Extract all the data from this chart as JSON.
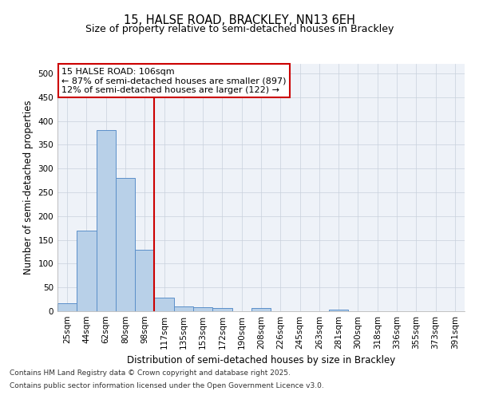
{
  "title_line1": "15, HALSE ROAD, BRACKLEY, NN13 6EH",
  "title_line2": "Size of property relative to semi-detached houses in Brackley",
  "xlabel": "Distribution of semi-detached houses by size in Brackley",
  "ylabel": "Number of semi-detached properties",
  "bins": [
    "25sqm",
    "44sqm",
    "62sqm",
    "80sqm",
    "98sqm",
    "117sqm",
    "135sqm",
    "153sqm",
    "172sqm",
    "190sqm",
    "208sqm",
    "226sqm",
    "245sqm",
    "263sqm",
    "281sqm",
    "300sqm",
    "318sqm",
    "336sqm",
    "355sqm",
    "373sqm",
    "391sqm"
  ],
  "values": [
    17,
    170,
    380,
    280,
    130,
    28,
    10,
    9,
    6,
    0,
    6,
    0,
    0,
    0,
    4,
    0,
    0,
    0,
    0,
    0,
    0
  ],
  "bar_color": "#b8d0e8",
  "bar_edge_color": "#5b8fc9",
  "red_line_index": 4.5,
  "red_line_label": "15 HALSE ROAD: 106sqm",
  "smaller_pct": 87,
  "smaller_n": 897,
  "larger_pct": 12,
  "larger_n": 122,
  "annotation_box_color": "#ffffff",
  "annotation_box_edge": "#cc0000",
  "ylim": [
    0,
    520
  ],
  "yticks": [
    0,
    50,
    100,
    150,
    200,
    250,
    300,
    350,
    400,
    450,
    500
  ],
  "footnote_line1": "Contains HM Land Registry data © Crown copyright and database right 2025.",
  "footnote_line2": "Contains public sector information licensed under the Open Government Licence v3.0.",
  "title_fontsize": 10.5,
  "subtitle_fontsize": 9,
  "axis_label_fontsize": 8.5,
  "tick_fontsize": 7.5,
  "annotation_fontsize": 8,
  "footnote_fontsize": 6.5
}
